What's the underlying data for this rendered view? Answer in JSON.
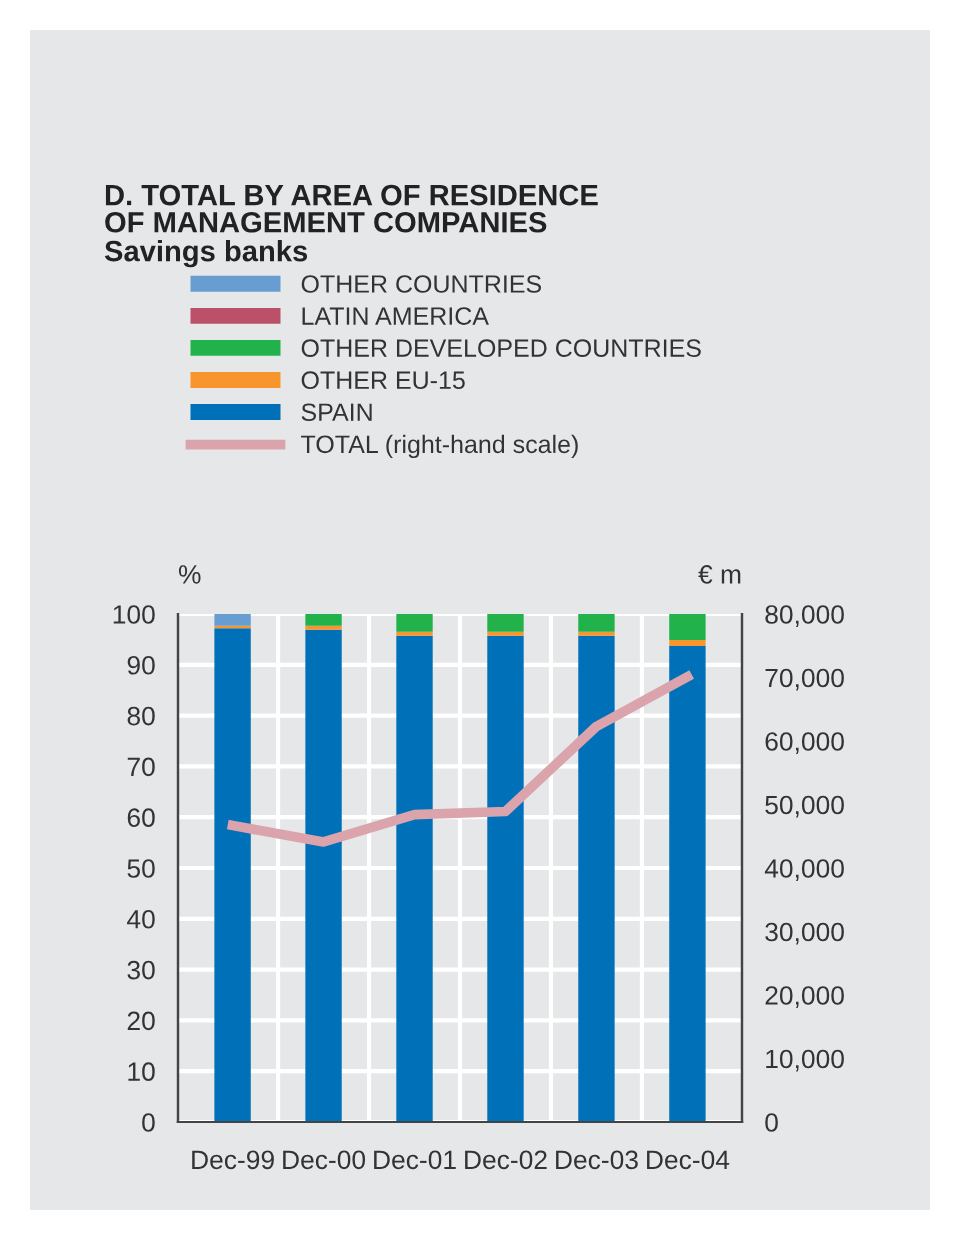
{
  "chart_data": {
    "type": "bar",
    "title": "D. TOTAL BY AREA OF RESIDENCE\nOF MANAGEMENT COMPANIES",
    "subtitle": "Savings banks",
    "ylabel": "%",
    "y2label": "€ m",
    "categories": [
      "Dec-99",
      "Dec-00",
      "Dec-01",
      "Dec-02",
      "Dec-03",
      "Dec-04"
    ],
    "stacked": true,
    "series": [
      {
        "name": "SPAIN",
        "color": "#0070b8",
        "values": [
          97.2,
          96.9,
          95.7,
          95.7,
          95.7,
          93.7
        ]
      },
      {
        "name": "OTHER EU-15",
        "color": "#f7952e",
        "values": [
          0.5,
          0.8,
          0.8,
          0.8,
          0.8,
          1.2
        ]
      },
      {
        "name": "OTHER DEVELOPED COUNTRIES",
        "color": "#22b24c",
        "values": [
          0,
          2.3,
          3.5,
          3.5,
          3.5,
          5.1
        ]
      },
      {
        "name": "LATIN AMERICA",
        "color": "#bb5168",
        "values": [
          0,
          0,
          0,
          0,
          0,
          0
        ]
      },
      {
        "name": "OTHER COUNTRIES",
        "color": "#689dd2",
        "values": [
          2.3,
          0,
          0,
          0,
          0,
          0
        ]
      },
      {
        "name": "TOTAL (right-hand scale)",
        "type": "line",
        "axis": "y2",
        "color": "#dba3ab",
        "values": [
          46700,
          44100,
          48400,
          48900,
          62300,
          70100
        ]
      }
    ],
    "ylim": [
      0,
      100
    ],
    "yticks": [
      0,
      10,
      20,
      30,
      40,
      50,
      60,
      70,
      80,
      90,
      100
    ],
    "y2lim": [
      0,
      80000
    ],
    "y2ticks": [
      0,
      {
        "value": 10000,
        "label": "10,000"
      },
      {
        "value": 20000,
        "label": "20,000"
      },
      {
        "value": 30000,
        "label": "30,000"
      },
      {
        "value": 40000,
        "label": "40,000"
      },
      {
        "value": 50000,
        "label": "50,000"
      },
      {
        "value": 60000,
        "label": "60,000"
      },
      {
        "value": 70000,
        "label": "70,000"
      },
      {
        "value": 80000,
        "label": "80,000"
      }
    ],
    "grid": true,
    "legend": "top"
  }
}
